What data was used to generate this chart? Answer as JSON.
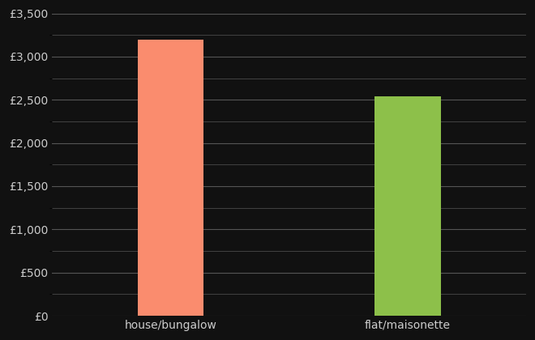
{
  "categories": [
    "house/bungalow",
    "flat/maisonette"
  ],
  "values": [
    3200,
    2540
  ],
  "bar_colors": [
    "#FA8C6E",
    "#8DC04A"
  ],
  "background_color": "#111111",
  "text_color": "#cccccc",
  "grid_color": "#555555",
  "ylim": [
    0,
    3500
  ],
  "yticks": [
    0,
    500,
    1000,
    1500,
    2000,
    2500,
    3000,
    3500
  ],
  "bar_width": 0.28,
  "figsize": [
    6.6,
    4.2
  ],
  "dpi": 100,
  "xlabel_fontsize": 10,
  "ylabel_fontsize": 10
}
